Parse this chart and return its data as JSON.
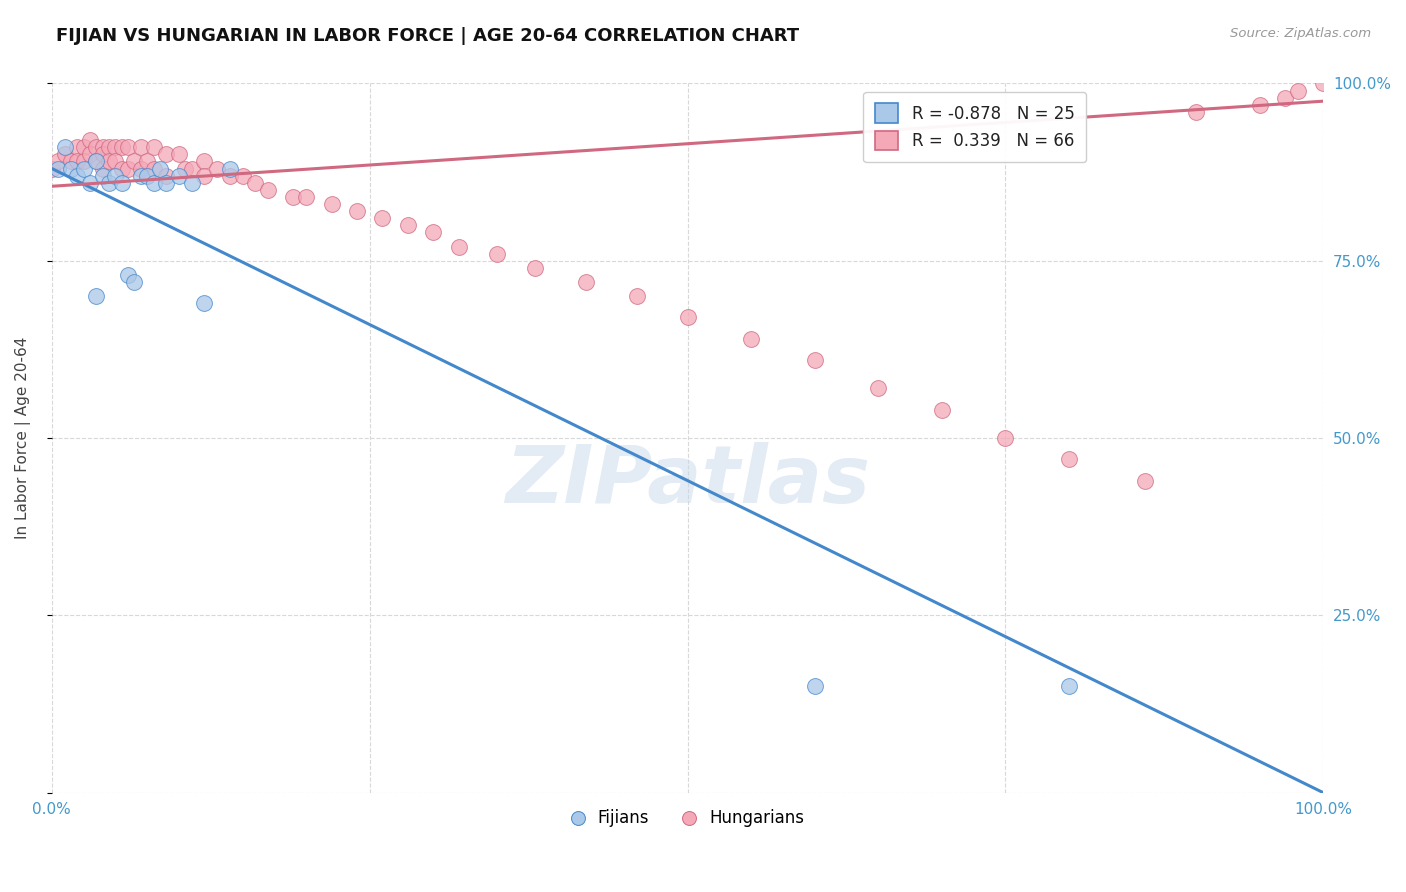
{
  "title": "FIJIAN VS HUNGARIAN IN LABOR FORCE | AGE 20-64 CORRELATION CHART",
  "source": "Source: ZipAtlas.com",
  "ylabel": "In Labor Force | Age 20-64",
  "xlim": [
    0.0,
    1.0
  ],
  "ylim": [
    0.0,
    1.0
  ],
  "fijian_color": "#aac8e8",
  "hungarian_color": "#f4a8b8",
  "fijian_line_color": "#4488cc",
  "hungarian_line_color": "#d06880",
  "fijian_R": -0.878,
  "fijian_N": 25,
  "hungarian_R": 0.339,
  "hungarian_N": 66,
  "fijian_line_x0": 0.0,
  "fijian_line_y0": 0.88,
  "fijian_line_x1": 1.0,
  "fijian_line_y1": 0.0,
  "hungarian_line_x0": 0.0,
  "hungarian_line_y0": 0.855,
  "hungarian_line_x1": 1.0,
  "hungarian_line_y1": 0.975,
  "fijians_x": [
    0.005,
    0.01,
    0.015,
    0.02,
    0.025,
    0.03,
    0.035,
    0.04,
    0.045,
    0.05,
    0.055,
    0.06,
    0.065,
    0.07,
    0.075,
    0.08,
    0.085,
    0.09,
    0.1,
    0.11,
    0.12,
    0.14,
    0.6,
    0.8,
    0.035
  ],
  "fijians_y": [
    0.88,
    0.91,
    0.88,
    0.87,
    0.88,
    0.86,
    0.89,
    0.87,
    0.86,
    0.87,
    0.86,
    0.73,
    0.72,
    0.87,
    0.87,
    0.86,
    0.88,
    0.86,
    0.87,
    0.86,
    0.69,
    0.88,
    0.15,
    0.15,
    0.7
  ],
  "hungarians_x": [
    0.0,
    0.005,
    0.01,
    0.015,
    0.02,
    0.02,
    0.025,
    0.025,
    0.03,
    0.03,
    0.035,
    0.035,
    0.04,
    0.04,
    0.04,
    0.045,
    0.045,
    0.05,
    0.05,
    0.055,
    0.055,
    0.06,
    0.06,
    0.065,
    0.07,
    0.07,
    0.075,
    0.08,
    0.08,
    0.09,
    0.09,
    0.1,
    0.105,
    0.11,
    0.12,
    0.12,
    0.13,
    0.14,
    0.15,
    0.16,
    0.17,
    0.19,
    0.2,
    0.22,
    0.24,
    0.26,
    0.28,
    0.3,
    0.32,
    0.35,
    0.38,
    0.42,
    0.46,
    0.5,
    0.55,
    0.6,
    0.65,
    0.7,
    0.75,
    0.8,
    0.86,
    0.9,
    0.95,
    0.97,
    0.98,
    1.0
  ],
  "hungarians_y": [
    0.88,
    0.89,
    0.9,
    0.89,
    0.91,
    0.89,
    0.91,
    0.89,
    0.92,
    0.9,
    0.91,
    0.89,
    0.91,
    0.9,
    0.88,
    0.91,
    0.89,
    0.91,
    0.89,
    0.91,
    0.88,
    0.91,
    0.88,
    0.89,
    0.91,
    0.88,
    0.89,
    0.91,
    0.88,
    0.9,
    0.87,
    0.9,
    0.88,
    0.88,
    0.89,
    0.87,
    0.88,
    0.87,
    0.87,
    0.86,
    0.85,
    0.84,
    0.84,
    0.83,
    0.82,
    0.81,
    0.8,
    0.79,
    0.77,
    0.76,
    0.74,
    0.72,
    0.7,
    0.67,
    0.64,
    0.61,
    0.57,
    0.54,
    0.5,
    0.47,
    0.44,
    0.96,
    0.97,
    0.98,
    0.99,
    1.0
  ],
  "background_color": "#ffffff",
  "grid_color": "#d8d8d8",
  "watermark": "ZIPatlas",
  "legend_fijians": "Fijians",
  "legend_hungarians": "Hungarians",
  "tick_label_color": "#4499cc"
}
